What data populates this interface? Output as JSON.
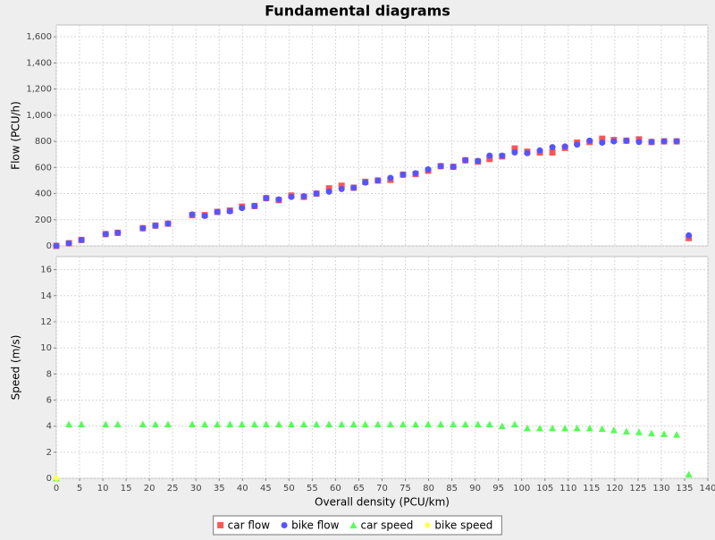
{
  "chart_data": [
    {
      "type": "scatter",
      "title": "Fundamental diagrams",
      "y_label": "Flow (PCU/h)",
      "grid": true,
      "x": [
        0,
        2.7,
        5.4,
        10.6,
        13.2,
        18.6,
        21.3,
        24,
        29.2,
        31.9,
        34.6,
        37.3,
        39.9,
        42.6,
        45.1,
        47.8,
        50.5,
        53.2,
        55.9,
        58.6,
        61.3,
        63.9,
        66.4,
        69.1,
        71.8,
        74.5,
        77.2,
        79.9,
        82.6,
        85.3,
        87.9,
        90.6,
        93.1,
        95.8,
        98.5,
        101.2,
        103.9,
        106.6,
        109.3,
        111.9,
        114.6,
        117.3,
        119.8,
        122.5,
        125.2,
        127.9,
        130.6,
        133.3,
        135.9
      ],
      "xlim": [
        0,
        140
      ],
      "ylim": [
        0,
        1690
      ],
      "yticks": [
        0,
        200,
        400,
        600,
        800,
        {
          "value": 1000,
          "label": "1,000"
        },
        {
          "value": 1200,
          "label": "1,200"
        },
        {
          "value": 1400,
          "label": "1,400"
        },
        {
          "value": 1600,
          "label": "1,600"
        }
      ],
      "series": [
        {
          "name": "car flow",
          "color": "#ff5555",
          "marker": "square",
          "values": [
            0,
            20,
            45,
            90,
            100,
            135,
            155,
            170,
            235,
            235,
            260,
            270,
            300,
            305,
            365,
            350,
            385,
            375,
            400,
            440,
            460,
            445,
            490,
            500,
            505,
            545,
            550,
            575,
            610,
            605,
            655,
            645,
            665,
            685,
            745,
            720,
            715,
            715,
            750,
            790,
            795,
            820,
            810,
            805,
            815,
            795,
            800,
            800,
            60
          ]
        },
        {
          "name": "bike flow",
          "color": "#5555ff",
          "marker": "circle",
          "values": [
            0,
            20,
            45,
            90,
            100,
            135,
            155,
            170,
            240,
            230,
            260,
            265,
            290,
            305,
            365,
            355,
            375,
            380,
            400,
            415,
            435,
            445,
            485,
            500,
            520,
            545,
            555,
            585,
            610,
            605,
            655,
            650,
            690,
            690,
            715,
            710,
            730,
            755,
            760,
            775,
            805,
            790,
            800,
            805,
            795,
            795,
            800,
            800,
            80
          ]
        }
      ]
    },
    {
      "type": "scatter",
      "x_label": "Overall density (PCU/km)",
      "y_label": "Speed (m/s)",
      "grid": true,
      "x": [
        0,
        2.7,
        5.4,
        10.6,
        13.2,
        18.6,
        21.3,
        24,
        29.2,
        31.9,
        34.6,
        37.3,
        39.9,
        42.6,
        45.1,
        47.8,
        50.5,
        53.2,
        55.9,
        58.6,
        61.3,
        63.9,
        66.4,
        69.1,
        71.8,
        74.5,
        77.2,
        79.9,
        82.6,
        85.3,
        87.9,
        90.6,
        93.1,
        95.8,
        98.5,
        101.2,
        103.9,
        106.6,
        109.3,
        111.9,
        114.6,
        117.3,
        119.8,
        122.5,
        125.2,
        127.9,
        130.6,
        133.3,
        135.9
      ],
      "xlim": [
        0,
        140
      ],
      "xticks": [
        0,
        5,
        10,
        15,
        20,
        25,
        30,
        35,
        40,
        45,
        50,
        55,
        60,
        65,
        70,
        75,
        80,
        85,
        90,
        95,
        100,
        105,
        110,
        115,
        120,
        125,
        130,
        135,
        140
      ],
      "ylim": [
        0,
        17
      ],
      "yticks": [
        0,
        2,
        4,
        6,
        8,
        10,
        12,
        14,
        16
      ],
      "series": [
        {
          "name": "car speed",
          "color": "#55ff55",
          "marker": "triangle",
          "values": [
            0,
            4.15,
            4.15,
            4.15,
            4.15,
            4.15,
            4.15,
            4.15,
            4.15,
            4.15,
            4.15,
            4.15,
            4.15,
            4.15,
            4.15,
            4.15,
            4.15,
            4.15,
            4.15,
            4.15,
            4.15,
            4.15,
            4.15,
            4.15,
            4.15,
            4.15,
            4.15,
            4.15,
            4.15,
            4.15,
            4.15,
            4.15,
            4.15,
            4.0,
            4.15,
            3.85,
            3.85,
            3.85,
            3.85,
            3.85,
            3.85,
            3.8,
            3.7,
            3.6,
            3.55,
            3.45,
            3.4,
            3.35,
            0.3
          ]
        },
        {
          "name": "bike speed",
          "color": "#ffff55",
          "marker": "diamond",
          "values": [
            0,
            null,
            null,
            null,
            null,
            null,
            null,
            null,
            null,
            null,
            null,
            null,
            null,
            null,
            null,
            null,
            null,
            null,
            null,
            null,
            null,
            null,
            null,
            null,
            null,
            null,
            null,
            null,
            null,
            null,
            null,
            null,
            null,
            null,
            null,
            null,
            null,
            null,
            null,
            null,
            null,
            null,
            null,
            null,
            null,
            null,
            null,
            null,
            null
          ]
        }
      ]
    }
  ]
}
